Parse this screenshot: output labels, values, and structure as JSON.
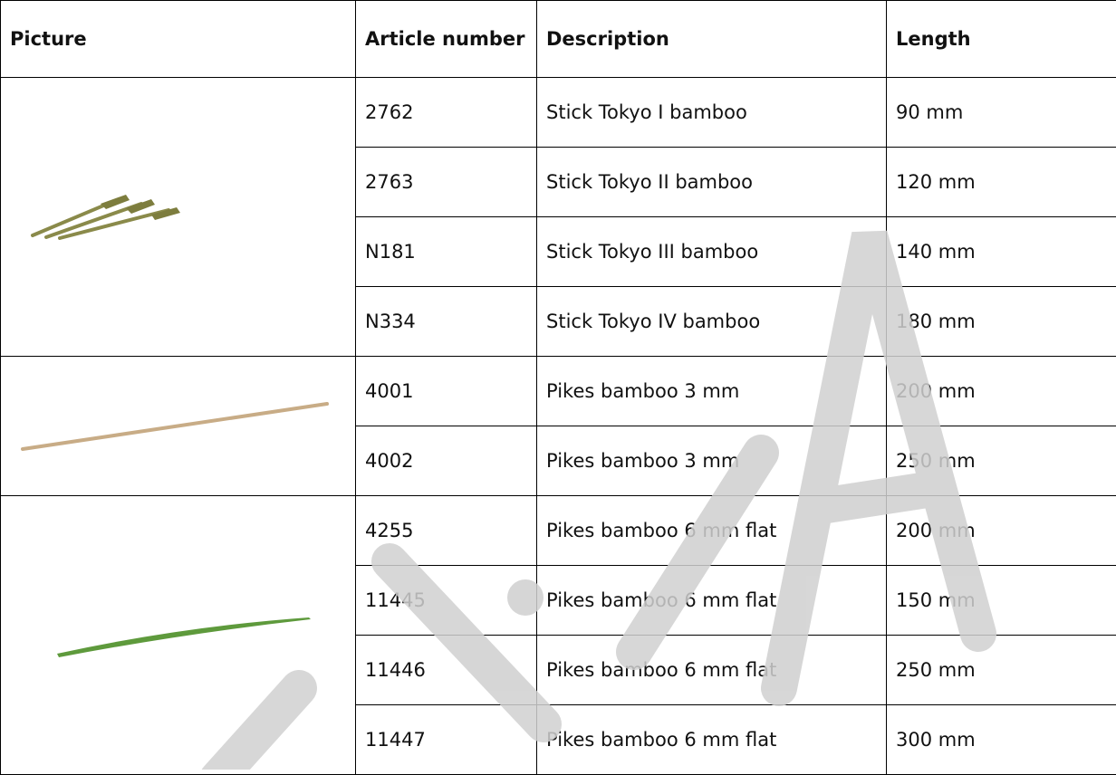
{
  "table": {
    "headers": [
      "Picture",
      "Article number",
      "Description",
      "Length"
    ],
    "groups": [
      {
        "rows": [
          [
            "2762",
            "Stick Tokyo I bamboo",
            "90 mm"
          ],
          [
            "2763",
            "Stick Tokyo II bamboo",
            "120 mm"
          ],
          [
            "N181",
            "Stick Tokyo III bamboo",
            "140 mm"
          ],
          [
            "N334",
            "Stick Tokyo IV bamboo",
            "180 mm"
          ]
        ]
      },
      {
        "rows": [
          [
            "4001",
            "Pikes bamboo 3 mm",
            "200 mm"
          ],
          [
            "4002",
            "Pikes bamboo 3 mm",
            "250 mm"
          ]
        ]
      },
      {
        "rows": [
          [
            "4255",
            "Pikes bamboo 6 mm flat",
            "200 mm"
          ],
          [
            "11445",
            "Pikes bamboo 6 mm flat",
            "150 mm"
          ],
          [
            "11446",
            "Pikes bamboo 6 mm flat",
            "250 mm"
          ],
          [
            "11447",
            "Pikes bamboo 6 mm flat",
            "300 mm"
          ]
        ]
      }
    ]
  }
}
